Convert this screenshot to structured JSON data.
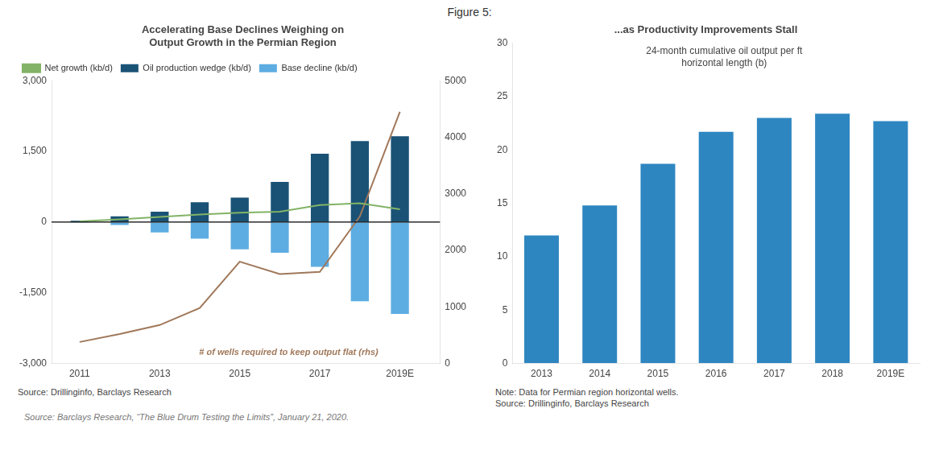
{
  "title": "Figure 5:",
  "source": "Source: Barclays Research, “The Blue Drum Testing the Limits”, January 21, 2020.",
  "chart_data": [
    {
      "type": "bar",
      "title": "Accelerating Base Declines Weighing on\nOutput Growth in the Permian Region",
      "x": [
        2011,
        2012,
        2013,
        2014,
        2015,
        2016,
        2017,
        2018,
        2019
      ],
      "series": [
        {
          "name": "Oil production wedge (kb/d)",
          "type": "bar",
          "color": "#1A5276",
          "values": [
            30,
            120,
            220,
            420,
            520,
            850,
            1450,
            1720,
            1820
          ]
        },
        {
          "name": "Base decline (kb/d)",
          "type": "bar",
          "color": "#5DADE2",
          "values": [
            -15,
            -60,
            -220,
            -350,
            -580,
            -650,
            -950,
            -1680,
            -1950
          ]
        },
        {
          "name": "Net growth (kb/d)",
          "type": "line",
          "color": "#82B366",
          "values": [
            15,
            60,
            110,
            160,
            200,
            220,
            360,
            400,
            270
          ]
        },
        {
          "type": "line",
          "color": "#A0785A",
          "axis": "y2",
          "values": [
            380,
            520,
            680,
            980,
            1800,
            1580,
            1620,
            2600,
            4450
          ]
        }
      ],
      "xlim": [
        2010.3,
        2020.0
      ],
      "xticks": [
        2011,
        2013,
        2015,
        2017,
        {
          "value": 2019,
          "label": "2019E"
        }
      ],
      "ylim": [
        -3000,
        3000
      ],
      "yticks": [
        {
          "value": -3000,
          "label": "-3,000"
        },
        {
          "value": -1500,
          "label": "-1,500"
        },
        0,
        {
          "value": 1500,
          "label": "1,500"
        },
        {
          "value": 3000,
          "label": "3,000"
        }
      ],
      "y2lim": [
        0,
        5000
      ],
      "y2ticks": [
        0,
        1000,
        2000,
        3000,
        4000,
        5000
      ],
      "grid": false,
      "legend": "upper left",
      "annotations": [
        "# of wells required to keep output flat (rhs)"
      ],
      "source": "Source: Drillinginfo, Barclays Research"
    },
    {
      "type": "bar",
      "title": "...as Productivity Improvements Stall",
      "categories": [
        "2013",
        "2014",
        "2015",
        "2016",
        "2017",
        "2018",
        "2019E"
      ],
      "values": [
        12.0,
        14.8,
        18.7,
        21.7,
        23.0,
        23.4,
        22.7
      ],
      "color": "#2E86C1",
      "ylim": [
        0,
        30
      ],
      "yticks": [
        0,
        5,
        10,
        15,
        20,
        25,
        30
      ],
      "grid": false,
      "annotations": [
        "24-month cumulative oil output per ft\nhorizontal length (b)"
      ],
      "source": "Note: Data for Permian region horizontal wells.\nSource: Drillinginfo, Barclays Research"
    }
  ]
}
